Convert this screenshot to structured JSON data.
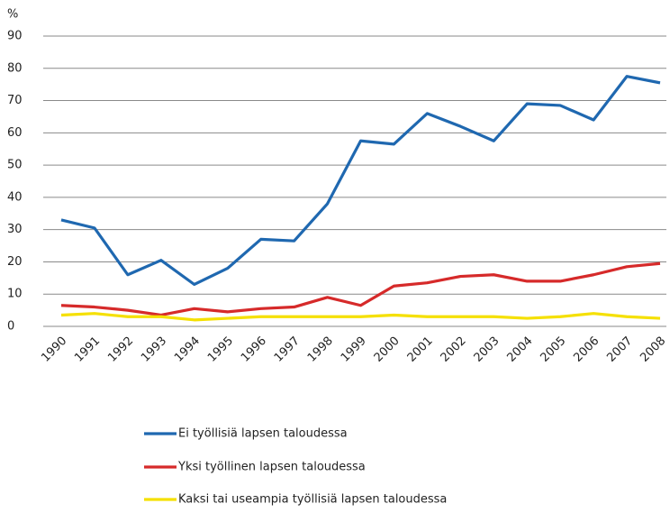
{
  "chart_data": {
    "type": "line",
    "y_label": "%",
    "categories": [
      "1990",
      "1991",
      "1992",
      "1993",
      "1994",
      "1995",
      "1996",
      "1997",
      "1998",
      "1999",
      "2000",
      "2001",
      "2002",
      "2003",
      "2004",
      "2005",
      "2006",
      "2007",
      "2008"
    ],
    "series": [
      {
        "name": "Ei työllisiä lapsen taloudessa",
        "color": "#1f68b0",
        "values": [
          33,
          30.5,
          16,
          20.5,
          13,
          18,
          27,
          26.5,
          38,
          57.5,
          56.5,
          66,
          62,
          57.5,
          69,
          68.5,
          64,
          77.5,
          75.5
        ]
      },
      {
        "name": "Yksi työllinen lapsen taloudessa",
        "color": "#d62a2a",
        "values": [
          6.5,
          6,
          5,
          3.5,
          5.5,
          4.5,
          5.5,
          6,
          9,
          6.5,
          12.5,
          13.5,
          15.5,
          16,
          14,
          14,
          16,
          18.5,
          19.5
        ]
      },
      {
        "name": "Kaksi tai useampia työllisiä lapsen taloudessa",
        "color": "#f5e000",
        "values": [
          3.5,
          4,
          3,
          3,
          2,
          2.5,
          3,
          3,
          3,
          3,
          3.5,
          3,
          3,
          3,
          2.5,
          3,
          4,
          3,
          2.5
        ]
      }
    ],
    "ylim": [
      0,
      90
    ],
    "yticks": [
      0,
      10,
      20,
      30,
      40,
      50,
      60,
      70,
      80,
      90
    ],
    "grid": true,
    "legend": "bottom"
  }
}
